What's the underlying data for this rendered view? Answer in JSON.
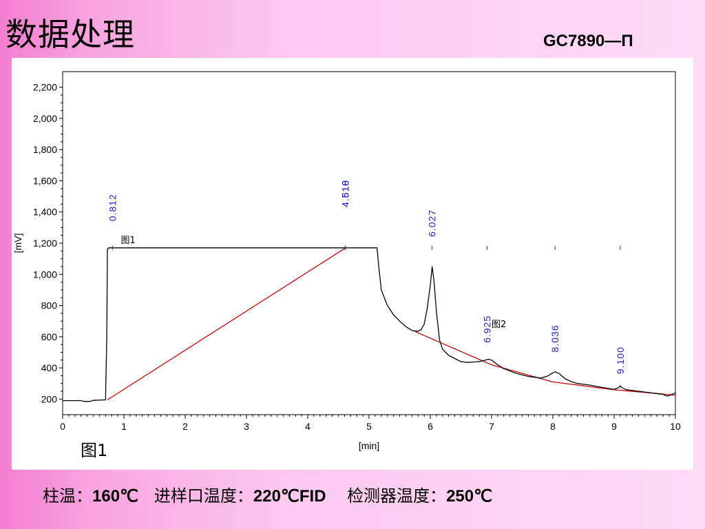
{
  "slide": {
    "title": "数据处理",
    "subtitle": "GC7890—Π",
    "figure_label": "图1",
    "footer": {
      "column_label": "柱温：",
      "column_value": "160℃",
      "inlet_label": "进样口温度：",
      "inlet_value": "220℃FID",
      "detector_label": "检测器温度：",
      "detector_value": "250℃"
    }
  },
  "chart_data": {
    "type": "line",
    "xlabel": "[min]",
    "ylabel": "[mV]",
    "xlim": [
      0,
      10
    ],
    "ylim": [
      100,
      2300
    ],
    "x_ticks": [
      0,
      1,
      2,
      3,
      4,
      5,
      6,
      7,
      8,
      9,
      10
    ],
    "y_ticks": [
      200,
      400,
      600,
      800,
      1000,
      1200,
      1400,
      1600,
      1800,
      2000,
      2200
    ],
    "y_tick_labels": [
      "200",
      "400",
      "600",
      "800",
      "1,000",
      "1,200",
      "1,400",
      "1,600",
      "1,800",
      "2,000",
      "2,200"
    ],
    "grid": false,
    "signal": {
      "x": [
        0,
        0.3,
        0.35,
        0.4,
        0.45,
        0.5,
        0.6,
        0.7,
        0.72,
        0.73,
        0.75,
        1.0,
        2.0,
        3.0,
        4.0,
        4.6,
        5.0,
        5.13,
        5.16,
        5.2,
        5.3,
        5.4,
        5.5,
        5.6,
        5.7,
        5.8,
        5.85,
        5.9,
        5.95,
        6.0,
        6.03,
        6.06,
        6.1,
        6.15,
        6.2,
        6.3,
        6.4,
        6.5,
        6.6,
        6.8,
        6.9,
        6.95,
        7.0,
        7.1,
        7.2,
        7.4,
        7.6,
        7.8,
        7.9,
        8.0,
        8.04,
        8.1,
        8.2,
        8.3,
        8.4,
        8.6,
        8.8,
        9.0,
        9.08,
        9.1,
        9.12,
        9.2,
        9.4,
        9.6,
        9.8,
        9.85,
        9.9,
        10.0
      ],
      "y": [
        190,
        190,
        185,
        185,
        185,
        192,
        193,
        195,
        600,
        1160,
        1170,
        1170,
        1170,
        1170,
        1170,
        1170,
        1170,
        1170,
        1050,
        900,
        800,
        740,
        700,
        665,
        640,
        635,
        645,
        680,
        780,
        930,
        1050,
        960,
        760,
        580,
        520,
        480,
        460,
        440,
        435,
        440,
        450,
        455,
        450,
        420,
        395,
        365,
        345,
        335,
        345,
        368,
        375,
        365,
        330,
        312,
        300,
        290,
        275,
        262,
        275,
        285,
        275,
        260,
        250,
        240,
        230,
        220,
        222,
        240
      ]
    },
    "baselines": [
      {
        "x": [
          0.73,
          4.6
        ],
        "y": [
          195,
          1165
        ]
      },
      {
        "x": [
          5.75,
          7.0,
          8.0,
          9.0,
          10.0
        ],
        "y": [
          633,
          420,
          310,
          260,
          225
        ]
      }
    ],
    "peak_labels": [
      {
        "x": 0.812,
        "text": "0.812"
      },
      {
        "x": 4.61,
        "text": "4.518"
      },
      {
        "x": 4.61,
        "text": "4.610"
      },
      {
        "x": 6.027,
        "text": "6.027"
      },
      {
        "x": 6.925,
        "text": "6.925"
      },
      {
        "x": 8.036,
        "text": "8.036"
      },
      {
        "x": 9.1,
        "text": "9.100"
      }
    ],
    "annotations": [
      {
        "x": 0.95,
        "y": 1200,
        "text": "图1"
      },
      {
        "x": 7.0,
        "y": 660,
        "text": "图2"
      }
    ],
    "colors": {
      "signal": "#000000",
      "baseline": "#cc0000",
      "peak_label": "#1f1fd6",
      "axis": "#000000"
    }
  }
}
